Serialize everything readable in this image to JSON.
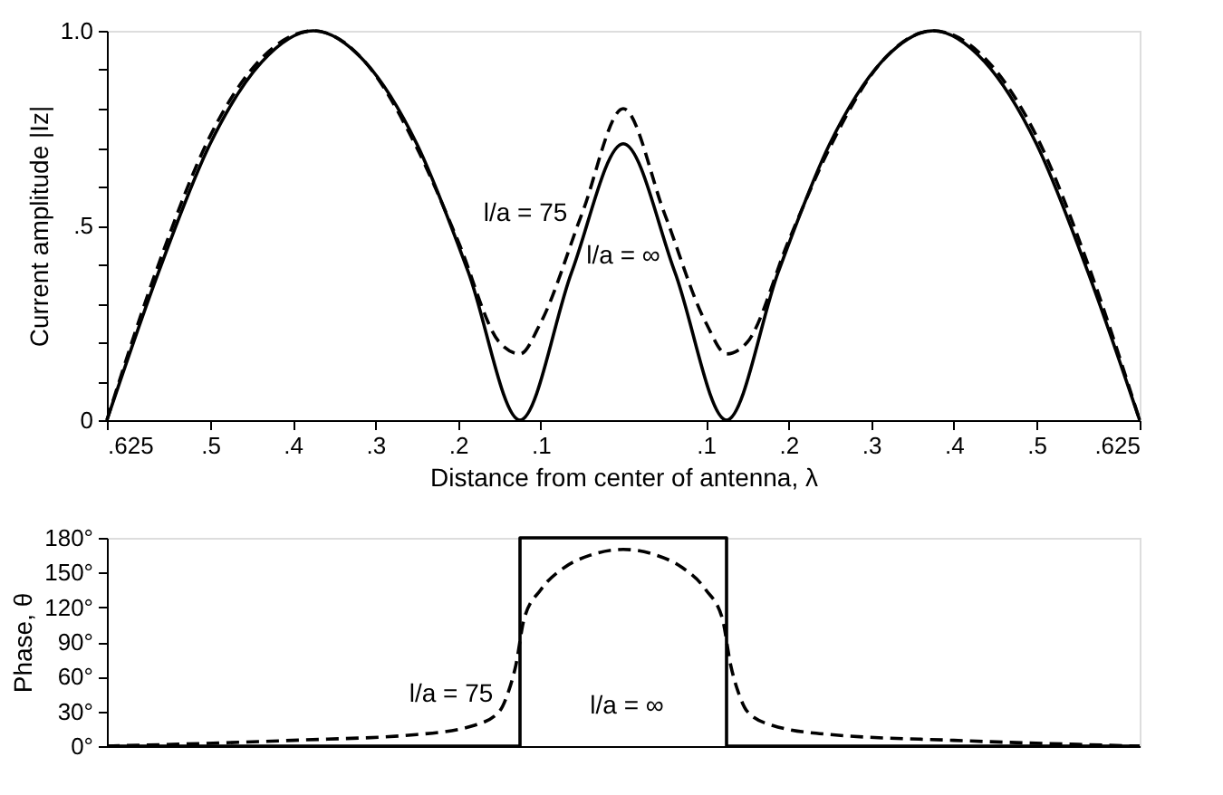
{
  "chart_data": [
    {
      "type": "line",
      "ylabel": "Current amplitude |Iz|",
      "xlabel": "Distance from center of antenna, λ",
      "xlim": [
        -0.625,
        0.625
      ],
      "ylim": [
        0,
        1.0
      ],
      "xticks": [
        {
          "value": -0.625,
          "label": ".625"
        },
        {
          "value": -0.5,
          "label": ".5"
        },
        {
          "value": -0.4,
          "label": ".4"
        },
        {
          "value": -0.3,
          "label": ".3"
        },
        {
          "value": -0.2,
          "label": ".2"
        },
        {
          "value": -0.1,
          "label": ".1"
        },
        {
          "value": 0.1,
          "label": ".1"
        },
        {
          "value": 0.2,
          "label": ".2"
        },
        {
          "value": 0.3,
          "label": ".3"
        },
        {
          "value": 0.4,
          "label": ".4"
        },
        {
          "value": 0.5,
          "label": ".5"
        },
        {
          "value": 0.625,
          "label": ".625"
        }
      ],
      "yticks": [
        {
          "value": 0,
          "label": "0"
        },
        {
          "value": 0.1,
          "label": null
        },
        {
          "value": 0.2,
          "label": null
        },
        {
          "value": 0.3,
          "label": null
        },
        {
          "value": 0.4,
          "label": null
        },
        {
          "value": 0.5,
          "label": ".5"
        },
        {
          "value": 0.6,
          "label": null
        },
        {
          "value": 0.7,
          "label": null
        },
        {
          "value": 0.8,
          "label": null
        },
        {
          "value": 0.9,
          "label": null
        },
        {
          "value": 1.0,
          "label": "1.0"
        }
      ],
      "grid": false,
      "legend": false,
      "marker": "none",
      "series": [
        {
          "name": "l/a = ∞",
          "color": "#000000",
          "line_style": "solid",
          "x": [
            -0.625,
            -0.5625,
            -0.5,
            -0.4375,
            -0.375,
            -0.3125,
            -0.25,
            -0.1875,
            -0.125,
            -0.0625,
            0,
            0.0625,
            0.125,
            0.1875,
            0.25,
            0.3125,
            0.375,
            0.4375,
            0.5,
            0.5625,
            0.625
          ],
          "values": [
            0,
            0.38,
            0.71,
            0.92,
            1.0,
            0.92,
            0.71,
            0.38,
            0,
            0.38,
            0.71,
            0.38,
            0,
            0.38,
            0.71,
            0.92,
            1.0,
            0.92,
            0.71,
            0.38,
            0
          ]
        },
        {
          "name": "l/a = 75",
          "color": "#000000",
          "line_style": "dashed",
          "x": [
            -0.625,
            -0.5625,
            -0.5,
            -0.4375,
            -0.375,
            -0.3125,
            -0.25,
            -0.2,
            -0.15,
            -0.125,
            -0.1,
            -0.05,
            0,
            0.05,
            0.1,
            0.125,
            0.15,
            0.2,
            0.25,
            0.3125,
            0.375,
            0.4375,
            0.5,
            0.5625,
            0.625
          ],
          "values": [
            0,
            0.4,
            0.73,
            0.93,
            1.0,
            0.92,
            0.7,
            0.46,
            0.2,
            0.17,
            0.25,
            0.53,
            0.8,
            0.53,
            0.25,
            0.17,
            0.2,
            0.46,
            0.7,
            0.92,
            1.0,
            0.93,
            0.73,
            0.4,
            0
          ]
        }
      ]
    },
    {
      "type": "line",
      "ylabel": "Phase, θ",
      "xlim": [
        -0.625,
        0.625
      ],
      "ylim": [
        0,
        180
      ],
      "tick_labels": "y",
      "yticks": [
        {
          "value": 0,
          "label": "0°"
        },
        {
          "value": 30,
          "label": "30°"
        },
        {
          "value": 60,
          "label": "60°"
        },
        {
          "value": 90,
          "label": "90°"
        },
        {
          "value": 120,
          "label": "120°"
        },
        {
          "value": 150,
          "label": "150°"
        },
        {
          "value": 180,
          "label": "180°"
        }
      ],
      "grid": false,
      "legend": false,
      "marker": "none",
      "series": [
        {
          "name": "l/a = ∞",
          "color": "#000000",
          "line_style": "solid",
          "x": [
            -0.625,
            -0.125,
            -0.125,
            0.125,
            0.125,
            0.625
          ],
          "values": [
            0,
            0,
            180,
            180,
            0,
            0
          ]
        },
        {
          "name": "l/a = 75",
          "color": "#000000",
          "line_style": "dashed",
          "x": [
            -0.625,
            -0.4,
            -0.25,
            -0.18,
            -0.15,
            -0.14,
            -0.13,
            -0.12,
            -0.1,
            -0.07,
            -0.04,
            0,
            0.04,
            0.07,
            0.1,
            0.12,
            0.13,
            0.14,
            0.15,
            0.18,
            0.25,
            0.4,
            0.625
          ],
          "values": [
            0,
            5,
            10,
            18,
            30,
            45,
            70,
            110,
            135,
            155,
            165,
            170,
            165,
            155,
            135,
            110,
            70,
            45,
            30,
            18,
            10,
            5,
            0
          ]
        }
      ]
    }
  ]
}
